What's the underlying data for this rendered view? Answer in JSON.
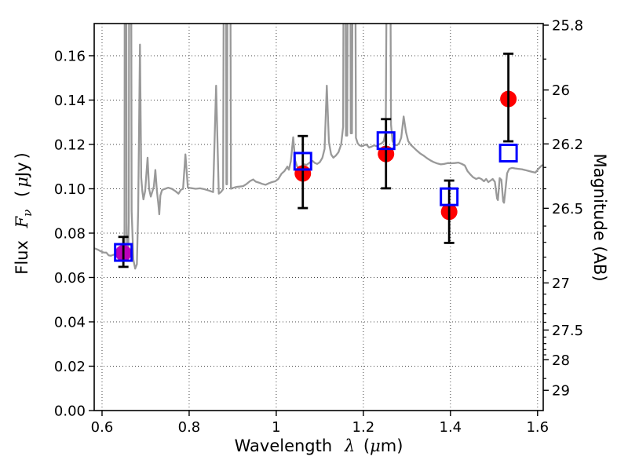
{
  "chart_data": {
    "type": "line+scatter",
    "description": "Spectral energy distribution: gray model spectrum, red filled circles (observed photometry with black error bars), blue open squares (model photometry)",
    "title": "",
    "labels": {
      "x_word": "Wavelength",
      "x_lambda": "λ",
      "x_open": "(",
      "x_mu": "μ",
      "x_close": "m)",
      "flux_word": "Flux",
      "flux_F": "F",
      "flux_nu": "ν",
      "flux_open": "(",
      "flux_mu": "μ",
      "flux_unit": "Jy",
      "flux_close": ")",
      "right_label": "Magnitude (AB)"
    },
    "xlim": [
      0.582,
      1.613
    ],
    "ylim_flux": [
      0,
      0.1745
    ],
    "ab_zeropoint_ujy": 23.9,
    "x_ticks": [
      {
        "v": 0.6,
        "label": "0.6"
      },
      {
        "v": 0.8,
        "label": "0.8"
      },
      {
        "v": 1.0,
        "label": "1"
      },
      {
        "v": 1.2,
        "label": "1.2"
      },
      {
        "v": 1.4,
        "label": "1.4"
      },
      {
        "v": 1.6,
        "label": "1.6"
      }
    ],
    "y_ticks_flux": [
      {
        "v": 0.0,
        "label": "0.00"
      },
      {
        "v": 0.02,
        "label": "0.02"
      },
      {
        "v": 0.04,
        "label": "0.04"
      },
      {
        "v": 0.06,
        "label": "0.06"
      },
      {
        "v": 0.08,
        "label": "0.08"
      },
      {
        "v": 0.1,
        "label": "0.10"
      },
      {
        "v": 0.12,
        "label": "0.12"
      },
      {
        "v": 0.14,
        "label": "0.14"
      },
      {
        "v": 0.16,
        "label": "0.16"
      }
    ],
    "y_ticks_mag_major": [
      {
        "v": 25.8,
        "label": "25.8"
      },
      {
        "v": 26.0,
        "label": "26"
      },
      {
        "v": 26.2,
        "label": "26.2"
      },
      {
        "v": 26.5,
        "label": "26.5"
      },
      {
        "v": 27.0,
        "label": "27"
      },
      {
        "v": 27.5,
        "label": "27.5"
      },
      {
        "v": 28.0,
        "label": "28"
      },
      {
        "v": 29.0,
        "label": "29"
      }
    ],
    "y_ticks_mag_minor": [
      25.9,
      26.1,
      26.3,
      26.4,
      26.6,
      26.7,
      26.8,
      26.9,
      27.1,
      27.2,
      27.3,
      27.4,
      27.6,
      27.7,
      27.8,
      27.9,
      28.5
    ],
    "grid_color": "#444444",
    "axis_color": "#000000",
    "errorbar_color": "#000000",
    "spectrum": {
      "color": "#999999",
      "points": [
        [
          0.582,
          0.0732
        ],
        [
          0.59,
          0.0726
        ],
        [
          0.597,
          0.0718
        ],
        [
          0.603,
          0.0713
        ],
        [
          0.61,
          0.0712
        ],
        [
          0.615,
          0.07
        ],
        [
          0.62,
          0.0698
        ],
        [
          0.627,
          0.0703
        ],
        [
          0.634,
          0.0706
        ],
        [
          0.641,
          0.0705
        ],
        [
          0.648,
          0.071
        ],
        [
          0.6515,
          0.073
        ],
        [
          0.6525,
          0.3
        ],
        [
          0.655,
          0.3
        ],
        [
          0.6565,
          0.08
        ],
        [
          0.658,
          0.072
        ],
        [
          0.66,
          0.072
        ],
        [
          0.6615,
          0.085
        ],
        [
          0.663,
          0.3
        ],
        [
          0.666,
          0.3
        ],
        [
          0.668,
          0.09
        ],
        [
          0.672,
          0.068
        ],
        [
          0.676,
          0.064
        ],
        [
          0.68,
          0.066
        ],
        [
          0.683,
          0.09
        ],
        [
          0.687,
          0.165
        ],
        [
          0.69,
          0.105
        ],
        [
          0.6925,
          0.099
        ],
        [
          0.695,
          0.0952
        ],
        [
          0.699,
          0.099
        ],
        [
          0.7045,
          0.114
        ],
        [
          0.708,
          0.1
        ],
        [
          0.712,
          0.0965
        ],
        [
          0.716,
          0.099
        ],
        [
          0.719,
          0.101
        ],
        [
          0.7225,
          0.1085
        ],
        [
          0.726,
          0.099
        ],
        [
          0.729,
          0.0935
        ],
        [
          0.7315,
          0.0885
        ],
        [
          0.734,
          0.097
        ],
        [
          0.738,
          0.0995
        ],
        [
          0.745,
          0.1
        ],
        [
          0.752,
          0.1005
        ],
        [
          0.76,
          0.1
        ],
        [
          0.768,
          0.099
        ],
        [
          0.7755,
          0.0978
        ],
        [
          0.781,
          0.0995
        ],
        [
          0.786,
          0.1
        ],
        [
          0.7915,
          0.1155
        ],
        [
          0.797,
          0.1005
        ],
        [
          0.805,
          0.1003
        ],
        [
          0.815,
          0.1
        ],
        [
          0.825,
          0.1002
        ],
        [
          0.835,
          0.0998
        ],
        [
          0.845,
          0.0992
        ],
        [
          0.855,
          0.0985
        ],
        [
          0.862,
          0.1465
        ],
        [
          0.868,
          0.0978
        ],
        [
          0.873,
          0.0985
        ],
        [
          0.878,
          0.0998
        ],
        [
          0.881,
          0.3
        ],
        [
          0.884,
          0.3
        ],
        [
          0.8855,
          0.102
        ],
        [
          0.887,
          0.102
        ],
        [
          0.889,
          0.3
        ],
        [
          0.8935,
          0.3
        ],
        [
          0.896,
          0.1
        ],
        [
          0.901,
          0.1004
        ],
        [
          0.908,
          0.1008
        ],
        [
          0.916,
          0.101
        ],
        [
          0.924,
          0.1012
        ],
        [
          0.932,
          0.1022
        ],
        [
          0.94,
          0.1035
        ],
        [
          0.947,
          0.1042
        ],
        [
          0.953,
          0.1032
        ],
        [
          0.96,
          0.1028
        ],
        [
          0.968,
          0.1022
        ],
        [
          0.9755,
          0.1018
        ],
        [
          0.983,
          0.1025
        ],
        [
          0.99,
          0.103
        ],
        [
          0.998,
          0.1034
        ],
        [
          1.005,
          0.1045
        ],
        [
          1.012,
          0.1068
        ],
        [
          1.019,
          0.108
        ],
        [
          1.0255,
          0.11
        ],
        [
          1.029,
          0.1086
        ],
        [
          1.0335,
          0.1125
        ],
        [
          1.039,
          0.1232
        ],
        [
          1.0435,
          0.1128
        ],
        [
          1.048,
          0.11
        ],
        [
          1.0525,
          0.1096
        ],
        [
          1.058,
          0.1102
        ],
        [
          1.064,
          0.111
        ],
        [
          1.07,
          0.1108
        ],
        [
          1.077,
          0.1118
        ],
        [
          1.083,
          0.1126
        ],
        [
          1.089,
          0.1116
        ],
        [
          1.094,
          0.1112
        ],
        [
          1.1,
          0.112
        ],
        [
          1.106,
          0.114
        ],
        [
          1.111,
          0.118
        ],
        [
          1.116,
          0.1465
        ],
        [
          1.121,
          0.121
        ],
        [
          1.126,
          0.1155
        ],
        [
          1.131,
          0.114
        ],
        [
          1.137,
          0.115
        ],
        [
          1.143,
          0.1165
        ],
        [
          1.149,
          0.12
        ],
        [
          1.1535,
          0.128
        ],
        [
          1.156,
          0.3
        ],
        [
          1.158,
          0.3
        ],
        [
          1.16,
          0.124
        ],
        [
          1.163,
          0.124
        ],
        [
          1.166,
          0.3
        ],
        [
          1.169,
          0.3
        ],
        [
          1.171,
          0.125
        ],
        [
          1.174,
          0.125
        ],
        [
          1.177,
          0.3
        ],
        [
          1.18,
          0.3
        ],
        [
          1.183,
          0.123
        ],
        [
          1.187,
          0.1205
        ],
        [
          1.191,
          0.1196
        ],
        [
          1.196,
          0.1192
        ],
        [
          1.201,
          0.1196
        ],
        [
          1.207,
          0.12
        ],
        [
          1.213,
          0.1186
        ],
        [
          1.219,
          0.119
        ],
        [
          1.2245,
          0.1196
        ],
        [
          1.23,
          0.1192
        ],
        [
          1.236,
          0.12
        ],
        [
          1.242,
          0.1205
        ],
        [
          1.247,
          0.1215
        ],
        [
          1.2515,
          0.126
        ],
        [
          1.2565,
          0.3
        ],
        [
          1.26,
          0.3
        ],
        [
          1.2635,
          0.129
        ],
        [
          1.267,
          0.1215
        ],
        [
          1.272,
          0.1198
        ],
        [
          1.277,
          0.1196
        ],
        [
          1.282,
          0.1205
        ],
        [
          1.287,
          0.123
        ],
        [
          1.2925,
          0.1326
        ],
        [
          1.298,
          0.1255
        ],
        [
          1.303,
          0.1215
        ],
        [
          1.309,
          0.1198
        ],
        [
          1.316,
          0.1185
        ],
        [
          1.323,
          0.1172
        ],
        [
          1.33,
          0.116
        ],
        [
          1.338,
          0.115
        ],
        [
          1.346,
          0.1138
        ],
        [
          1.354,
          0.1128
        ],
        [
          1.362,
          0.112
        ],
        [
          1.37,
          0.1114
        ],
        [
          1.378,
          0.111
        ],
        [
          1.386,
          0.1112
        ],
        [
          1.394,
          0.1116
        ],
        [
          1.402,
          0.1115
        ],
        [
          1.41,
          0.1116
        ],
        [
          1.418,
          0.1118
        ],
        [
          1.426,
          0.1112
        ],
        [
          1.433,
          0.1105
        ],
        [
          1.439,
          0.108
        ],
        [
          1.445,
          0.1066
        ],
        [
          1.452,
          0.1052
        ],
        [
          1.459,
          0.1044
        ],
        [
          1.465,
          0.1049
        ],
        [
          1.471,
          0.1044
        ],
        [
          1.477,
          0.1034
        ],
        [
          1.482,
          0.1044
        ],
        [
          1.487,
          0.103
        ],
        [
          1.492,
          0.1037
        ],
        [
          1.497,
          0.1044
        ],
        [
          1.502,
          0.1031
        ],
        [
          1.507,
          0.0956
        ],
        [
          1.509,
          0.0949
        ],
        [
          1.513,
          0.1048
        ],
        [
          1.517,
          0.104
        ],
        [
          1.521,
          0.0943
        ],
        [
          1.523,
          0.0937
        ],
        [
          1.527,
          0.101
        ],
        [
          1.53,
          0.107
        ],
        [
          1.535,
          0.109
        ],
        [
          1.541,
          0.1094
        ],
        [
          1.548,
          0.1092
        ],
        [
          1.556,
          0.109
        ],
        [
          1.564,
          0.1088
        ],
        [
          1.572,
          0.1084
        ],
        [
          1.58,
          0.108
        ],
        [
          1.588,
          0.1076
        ],
        [
          1.595,
          0.1073
        ],
        [
          1.602,
          0.109
        ],
        [
          1.608,
          0.1102
        ],
        [
          1.612,
          0.1108
        ]
      ]
    },
    "photometry": {
      "observed": {
        "marker": "filled-circle",
        "points": [
          {
            "lambda": 0.649,
            "flux": 0.071,
            "err_lo": 0.0648,
            "err_hi": 0.0783,
            "color": "#bb00bb"
          },
          {
            "lambda": 1.061,
            "flux": 0.1069,
            "err_lo": 0.0913,
            "err_hi": 0.1238,
            "color": "#ff0000"
          },
          {
            "lambda": 1.252,
            "flux": 0.1157,
            "err_lo": 0.1002,
            "err_hi": 0.1314,
            "color": "#ff0000"
          },
          {
            "lambda": 1.397,
            "flux": 0.0896,
            "err_lo": 0.0756,
            "err_hi": 0.1037,
            "color": "#ff0000"
          },
          {
            "lambda": 1.533,
            "flux": 0.1405,
            "err_lo": 0.1214,
            "err_hi": 0.1609,
            "color": "#ff0000"
          }
        ]
      },
      "model": {
        "marker": "open-square",
        "color": "#0000ff",
        "points": [
          {
            "lambda": 0.649,
            "flux": 0.0713
          },
          {
            "lambda": 1.061,
            "flux": 0.1124
          },
          {
            "lambda": 1.252,
            "flux": 0.1217
          },
          {
            "lambda": 1.397,
            "flux": 0.0964
          },
          {
            "lambda": 1.533,
            "flux": 0.1161
          }
        ]
      }
    }
  }
}
